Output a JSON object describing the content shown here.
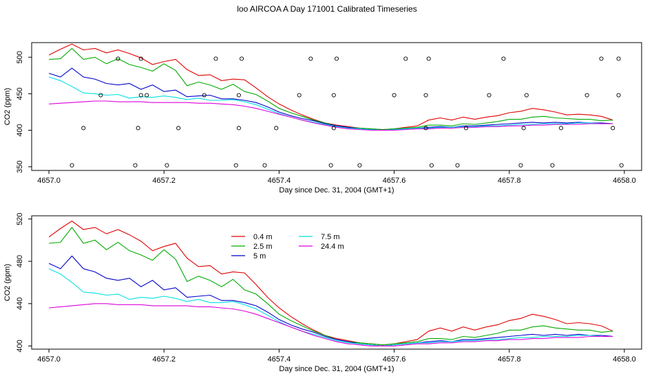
{
  "page": {
    "title": "loo AIRCOA A  Day 171001  Calibrated Timeseries"
  },
  "chart_data": [
    {
      "type": "line",
      "xlabel": "Day since Dec. 31, 2004 (GMT+1)",
      "ylabel": "CO2 (ppm)",
      "xlim": [
        4656.97,
        4658.03
      ],
      "ylim": [
        345,
        520
      ],
      "xticks": [
        "4657.0",
        "4657.2",
        "4657.4",
        "4657.6",
        "4657.8",
        "4658.0"
      ],
      "xtick_values": [
        4657.0,
        4657.2,
        4657.4,
        4657.6,
        4657.8,
        4658.0
      ],
      "yticks": [
        "350",
        "400",
        "450",
        "500"
      ],
      "ytick_values": [
        350,
        400,
        450,
        500
      ],
      "grid": false,
      "x": [
        4657.0,
        4657.02,
        4657.04,
        4657.06,
        4657.08,
        4657.1,
        4657.12,
        4657.14,
        4657.16,
        4657.18,
        4657.2,
        4657.22,
        4657.24,
        4657.26,
        4657.28,
        4657.3,
        4657.32,
        4657.34,
        4657.36,
        4657.38,
        4657.4,
        4657.42,
        4657.44,
        4657.46,
        4657.48,
        4657.5,
        4657.52,
        4657.54,
        4657.56,
        4657.58,
        4657.6,
        4657.62,
        4657.64,
        4657.66,
        4657.68,
        4657.7,
        4657.72,
        4657.74,
        4657.76,
        4657.78,
        4657.8,
        4657.82,
        4657.84,
        4657.86,
        4657.88,
        4657.9,
        4657.92,
        4657.94,
        4657.96,
        4657.98
      ],
      "series": [
        {
          "name": "0.4 m",
          "color": "#e00000",
          "values": [
            503,
            511,
            518,
            510,
            512,
            506,
            510,
            505,
            499,
            490,
            494,
            497,
            483,
            475,
            476,
            468,
            470,
            469,
            458,
            446,
            436,
            428,
            421,
            415,
            410,
            407,
            405,
            403,
            402,
            401,
            402,
            404,
            406,
            414,
            417,
            414,
            418,
            415,
            418,
            420,
            424,
            426,
            430,
            428,
            425,
            421,
            422,
            421,
            419,
            414
          ]
        },
        {
          "name": "2.5 m",
          "color": "#00aa00",
          "values": [
            497,
            498,
            512,
            497,
            500,
            491,
            498,
            490,
            486,
            481,
            491,
            482,
            461,
            466,
            462,
            456,
            463,
            453,
            449,
            440,
            430,
            424,
            419,
            414,
            410,
            406,
            404,
            403,
            402,
            401,
            402,
            403,
            404,
            407,
            407,
            406,
            409,
            408,
            410,
            412,
            415,
            415,
            418,
            419,
            417,
            416,
            415,
            415,
            413,
            414
          ]
        },
        {
          "name": "5 m",
          "color": "#0000cc",
          "values": [
            478,
            473,
            485,
            473,
            470,
            464,
            462,
            464,
            456,
            462,
            453,
            455,
            446,
            447,
            448,
            443,
            443,
            441,
            438,
            432,
            425,
            420,
            416,
            413,
            409,
            406,
            404,
            402,
            401,
            400,
            401,
            402,
            403,
            404,
            405,
            404,
            406,
            406,
            407,
            408,
            409,
            410,
            411,
            410,
            411,
            410,
            411,
            410,
            410,
            409
          ]
        },
        {
          "name": "7.5 m",
          "color": "#00e0e0",
          "values": [
            473,
            468,
            460,
            451,
            450,
            448,
            449,
            444,
            446,
            445,
            447,
            445,
            442,
            444,
            441,
            441,
            442,
            439,
            435,
            429,
            423,
            418,
            414,
            411,
            408,
            405,
            403,
            402,
            401,
            400,
            401,
            402,
            403,
            403,
            404,
            404,
            405,
            405,
            406,
            406,
            407,
            408,
            408,
            409,
            409,
            409,
            410,
            410,
            409,
            409
          ]
        },
        {
          "name": "24.4 m",
          "color": "#dd00dd",
          "values": [
            436,
            437,
            438,
            439,
            440,
            440,
            439,
            439,
            439,
            438,
            438,
            438,
            438,
            437,
            437,
            436,
            435,
            433,
            430,
            426,
            422,
            418,
            414,
            410,
            407,
            404,
            402,
            401,
            400,
            400,
            400,
            401,
            402,
            402,
            403,
            403,
            404,
            404,
            405,
            405,
            406,
            406,
            407,
            407,
            408,
            408,
            408,
            409,
            409,
            409
          ]
        }
      ],
      "points": {
        "name": "flag",
        "x": [
          4657.04,
          4657.06,
          4657.09,
          4657.12,
          4657.15,
          4657.155,
          4657.16,
          4657.16,
          4657.17,
          4657.205,
          4657.225,
          4657.27,
          4657.29,
          4657.325,
          4657.33,
          4657.33,
          4657.335,
          4657.375,
          4657.395,
          4657.435,
          4657.455,
          4657.49,
          4657.495,
          4657.495,
          4657.5,
          4657.54,
          4657.6,
          4657.62,
          4657.655,
          4657.655,
          4657.66,
          4657.665,
          4657.71,
          4657.725,
          4657.765,
          4657.79,
          4657.82,
          4657.825,
          4657.83,
          4657.875,
          4657.89,
          4657.935,
          4657.96,
          4657.98,
          4657.99,
          4657.99,
          4657.995
        ],
        "y": [
          352,
          403,
          448,
          498,
          352,
          403,
          448,
          498,
          448,
          352,
          403,
          448,
          498,
          352,
          403,
          448,
          498,
          352,
          403,
          448,
          498,
          352,
          403,
          448,
          498,
          352,
          448,
          498,
          403,
          448,
          498,
          352,
          352,
          403,
          448,
          498,
          352,
          403,
          448,
          352,
          403,
          448,
          498,
          403,
          448,
          498,
          352
        ]
      }
    },
    {
      "type": "line",
      "xlabel": "Day since Dec. 31, 2004 (GMT+1)",
      "ylabel": "CO2 (ppm)",
      "xlim": [
        4656.97,
        4658.03
      ],
      "ylim": [
        397,
        523
      ],
      "xticks": [
        "4657.0",
        "4657.2",
        "4657.4",
        "4657.6",
        "4657.8",
        "4658.0"
      ],
      "xtick_values": [
        4657.0,
        4657.2,
        4657.4,
        4657.6,
        4657.8,
        4658.0
      ],
      "yticks": [
        "400",
        "440",
        "480",
        "520"
      ],
      "ytick_values": [
        400,
        440,
        480,
        520
      ],
      "grid": false,
      "legend_position": "top-left",
      "legend": [
        "0.4 m",
        "2.5 m",
        "5 m",
        "7.5 m",
        "24.4 m"
      ],
      "same_series_as_first_panel": true
    }
  ]
}
